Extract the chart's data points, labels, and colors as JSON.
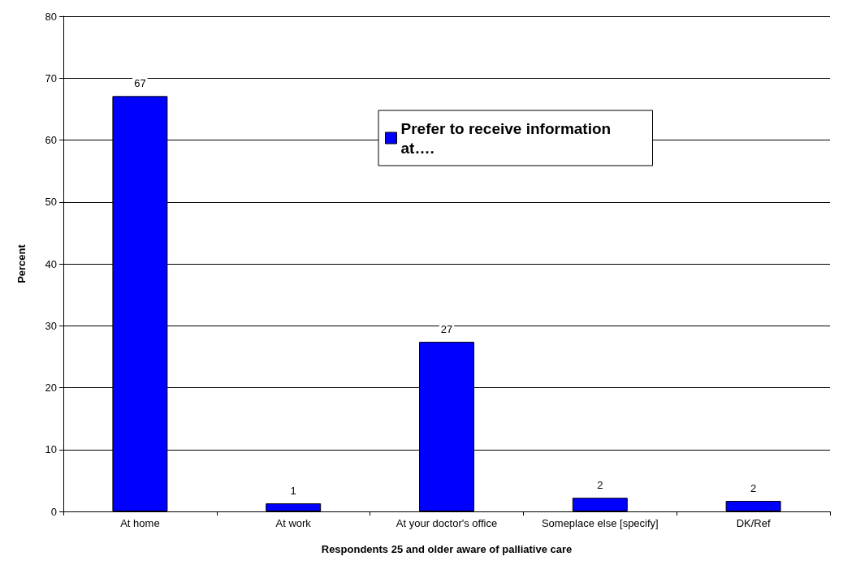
{
  "chart_data": {
    "type": "bar",
    "xlabel": "Respondents 25 and older aware of palliative care",
    "ylabel": "Percent",
    "categories": [
      "At home",
      "At work",
      "At your doctor's office",
      "Someplace else [specify]",
      "DK/Ref"
    ],
    "series": [
      {
        "name": "Prefer to receive information at….",
        "color": "#0000ff",
        "values": [
          67.1,
          1.3,
          27.4,
          2.2,
          1.7
        ],
        "value_labels": [
          "67",
          "1",
          "27",
          "2",
          "2"
        ]
      }
    ],
    "ylim": [
      0,
      80
    ],
    "yticks": [
      0,
      10,
      20,
      30,
      40,
      50,
      60,
      70,
      80
    ],
    "grid": "y",
    "legend": "top right"
  }
}
